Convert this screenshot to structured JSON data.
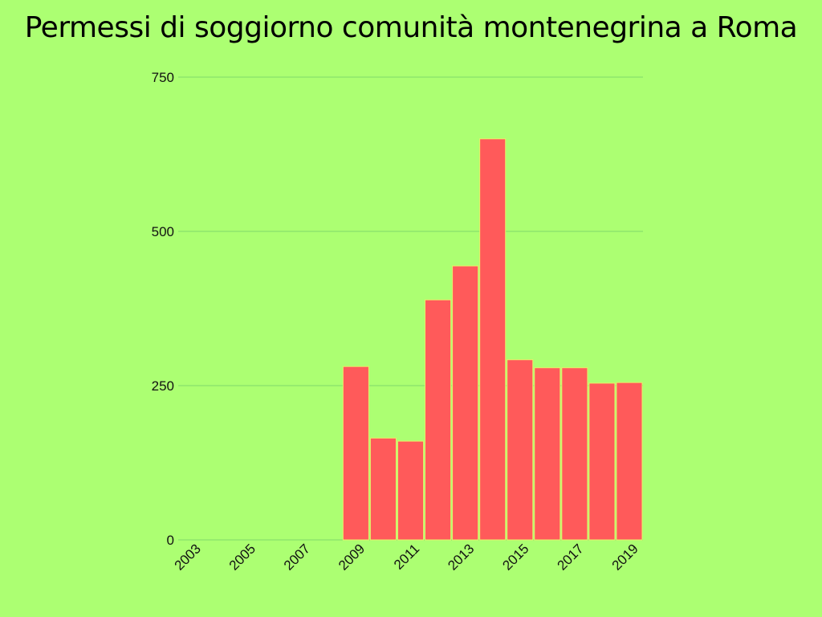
{
  "chart_data": {
    "type": "bar",
    "title": "Permessi di soggiorno comunità montenegrina a Roma",
    "x": [
      2003,
      2004,
      2005,
      2006,
      2007,
      2008,
      2009,
      2010,
      2011,
      2012,
      2013,
      2014,
      2015,
      2016,
      2017,
      2018,
      2019
    ],
    "values": [
      0,
      0,
      0,
      0,
      0,
      0,
      281,
      165,
      160,
      389,
      444,
      650,
      292,
      279,
      279,
      254,
      255
    ],
    "x_tick_labels": [
      "2003",
      "2005",
      "2007",
      "2009",
      "2011",
      "2013",
      "2015",
      "2017",
      "2019"
    ],
    "y_ticks": [
      0,
      250,
      500,
      750
    ],
    "ylim": [
      0,
      750
    ],
    "xlabel": "",
    "ylabel": "",
    "grid": true,
    "colors": {
      "bar": "#ff5a5a",
      "bar_edge": "#e8ef6a",
      "grid": "#7fd86a",
      "background": "#acff72"
    }
  }
}
